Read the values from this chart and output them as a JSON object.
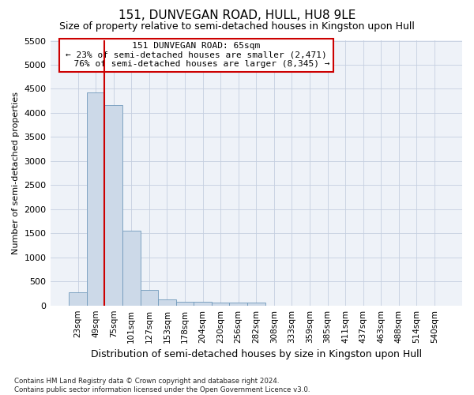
{
  "title": "151, DUNVEGAN ROAD, HULL, HU8 9LE",
  "subtitle": "Size of property relative to semi-detached houses in Kingston upon Hull",
  "xlabel": "Distribution of semi-detached houses by size in Kingston upon Hull",
  "ylabel": "Number of semi-detached properties",
  "footnote": "Contains HM Land Registry data © Crown copyright and database right 2024.\nContains public sector information licensed under the Open Government Licence v3.0.",
  "bar_color": "#ccd9e8",
  "bar_edge_color": "#7099bb",
  "annotation_box_color": "#ffffff",
  "annotation_border_color": "#cc0000",
  "redline_color": "#cc0000",
  "categories": [
    "23sqm",
    "49sqm",
    "75sqm",
    "101sqm",
    "127sqm",
    "153sqm",
    "178sqm",
    "204sqm",
    "230sqm",
    "256sqm",
    "282sqm",
    "308sqm",
    "333sqm",
    "359sqm",
    "385sqm",
    "411sqm",
    "437sqm",
    "463sqm",
    "488sqm",
    "514sqm",
    "540sqm"
  ],
  "values": [
    280,
    4430,
    4160,
    1560,
    320,
    120,
    80,
    80,
    60,
    60,
    60,
    0,
    0,
    0,
    0,
    0,
    0,
    0,
    0,
    0,
    0
  ],
  "ylim": [
    0,
    5500
  ],
  "yticks": [
    0,
    500,
    1000,
    1500,
    2000,
    2500,
    3000,
    3500,
    4000,
    4500,
    5000,
    5500
  ],
  "property_label": "151 DUNVEGAN ROAD: 65sqm",
  "pct_smaller": 23,
  "pct_larger": 76,
  "n_smaller": 2471,
  "n_larger": 8345,
  "redline_bar_index": 1.5,
  "background_color": "#eef2f8",
  "grid_color": "#c5cfe0",
  "title_fontsize": 11,
  "subtitle_fontsize": 9,
  "xlabel_fontsize": 9,
  "ylabel_fontsize": 8,
  "tick_fontsize": 8,
  "annot_fontsize": 8
}
